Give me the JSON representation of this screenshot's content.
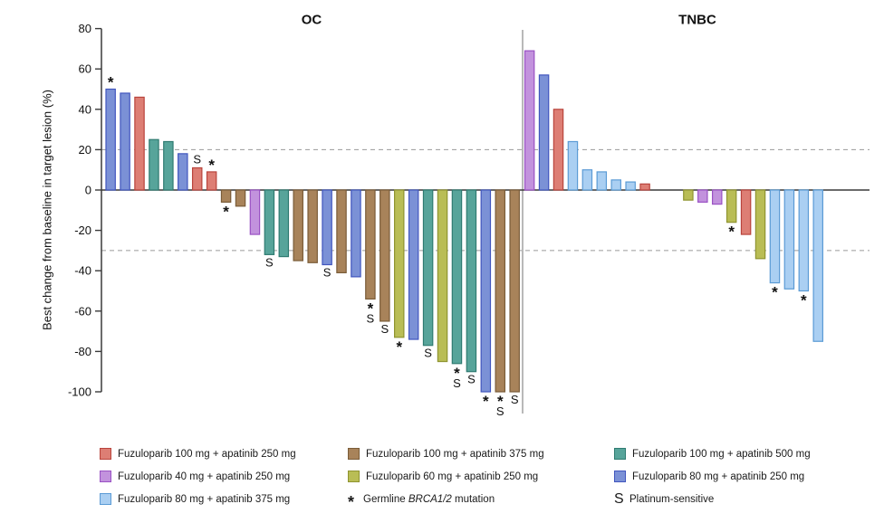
{
  "chart_data": {
    "type": "bar",
    "subtype": "waterfall",
    "ylabel": "Best change from baseline in target lesion (%)",
    "ylim": [
      -100,
      80
    ],
    "yticks": [
      80,
      60,
      40,
      20,
      0,
      -20,
      -40,
      -60,
      -80,
      -100
    ],
    "reference_lines": [
      20,
      -30
    ],
    "grid": "off",
    "legend_position": "bottom",
    "treatments": {
      "f100a250": {
        "label": "Fuzuloparib 100 mg + apatinib 250 mg",
        "fill": "#dd7e74",
        "stroke": "#b9443c"
      },
      "f100a375": {
        "label": "Fuzuloparib 100 mg + apatinib 375 mg",
        "fill": "#a8835a",
        "stroke": "#7a5c38"
      },
      "f100a500": {
        "label": "Fuzuloparib 100 mg + apatinib 500 mg",
        "fill": "#57a49a",
        "stroke": "#2f7b71"
      },
      "f40a250": {
        "label": "Fuzuloparib 40 mg + apatinib 250 mg",
        "fill": "#c292dd",
        "stroke": "#9a52c4"
      },
      "f60a250": {
        "label": "Fuzuloparib 60 mg + apatinib 250 mg",
        "fill": "#b9bd55",
        "stroke": "#8f9430"
      },
      "f80a250": {
        "label": "Fuzuloparib 80 mg + apatinib 250 mg",
        "fill": "#7b91d6",
        "stroke": "#4156be"
      },
      "f80a375": {
        "label": "Fuzuloparib 80 mg + apatinib 375 mg",
        "fill": "#aacff2",
        "stroke": "#5b9bd5"
      }
    },
    "markers": {
      "brca": {
        "symbol": "*",
        "label_parts": [
          "Germline ",
          "BRCA1/2",
          " mutation"
        ]
      },
      "platinum": {
        "symbol": "S",
        "label": "Platinum-sensitive"
      }
    },
    "legend_columns": [
      [
        "f100a250",
        "f40a250",
        "f80a375"
      ],
      [
        "f100a375",
        "f60a250",
        "brca"
      ],
      [
        "f100a500",
        "f80a250",
        "platinum"
      ]
    ],
    "panels": [
      {
        "title": "OC",
        "bars": [
          {
            "slot": 0,
            "value": 50,
            "treatment": "f80a250",
            "markers": "*"
          },
          {
            "slot": 1,
            "value": 48,
            "treatment": "f80a250",
            "markers": ""
          },
          {
            "slot": 2,
            "value": 46,
            "treatment": "f100a250",
            "markers": ""
          },
          {
            "slot": 3,
            "value": 25,
            "treatment": "f100a500",
            "markers": ""
          },
          {
            "slot": 4,
            "value": 24,
            "treatment": "f100a500",
            "markers": ""
          },
          {
            "slot": 5,
            "value": 18,
            "treatment": "f80a250",
            "markers": ""
          },
          {
            "slot": 6,
            "value": 11,
            "treatment": "f100a250",
            "markers": "S"
          },
          {
            "slot": 7,
            "value": 9,
            "treatment": "f100a250",
            "markers": "*"
          },
          {
            "slot": 8,
            "value": -6,
            "treatment": "f100a375",
            "markers": "*"
          },
          {
            "slot": 9,
            "value": -8,
            "treatment": "f100a375",
            "markers": ""
          },
          {
            "slot": 10,
            "value": -22,
            "treatment": "f40a250",
            "markers": ""
          },
          {
            "slot": 11,
            "value": -32,
            "treatment": "f100a500",
            "markers": "S"
          },
          {
            "slot": 12,
            "value": -33,
            "treatment": "f100a500",
            "markers": ""
          },
          {
            "slot": 13,
            "value": -35,
            "treatment": "f100a375",
            "markers": ""
          },
          {
            "slot": 14,
            "value": -36,
            "treatment": "f100a375",
            "markers": ""
          },
          {
            "slot": 15,
            "value": -37,
            "treatment": "f80a250",
            "markers": "S"
          },
          {
            "slot": 16,
            "value": -41,
            "treatment": "f100a375",
            "markers": ""
          },
          {
            "slot": 17,
            "value": -43,
            "treatment": "f80a250",
            "markers": ""
          },
          {
            "slot": 18,
            "value": -54,
            "treatment": "f100a375",
            "markers": "*S"
          },
          {
            "slot": 19,
            "value": -65,
            "treatment": "f100a375",
            "markers": "S"
          },
          {
            "slot": 20,
            "value": -73,
            "treatment": "f60a250",
            "markers": "*"
          },
          {
            "slot": 21,
            "value": -74,
            "treatment": "f80a250",
            "markers": ""
          },
          {
            "slot": 22,
            "value": -77,
            "treatment": "f100a500",
            "markers": "S"
          },
          {
            "slot": 23,
            "value": -85,
            "treatment": "f60a250",
            "markers": ""
          },
          {
            "slot": 24,
            "value": -86,
            "treatment": "f100a500",
            "markers": "*S"
          },
          {
            "slot": 25,
            "value": -90,
            "treatment": "f100a500",
            "markers": "S"
          },
          {
            "slot": 26,
            "value": -100,
            "treatment": "f80a250",
            "markers": "*"
          },
          {
            "slot": 27,
            "value": -100,
            "treatment": "f100a375",
            "markers": "*S"
          },
          {
            "slot": 28,
            "value": -100,
            "treatment": "f100a375",
            "markers": "S"
          }
        ]
      },
      {
        "title": "TNBC",
        "bars": [
          {
            "slot": 0,
            "value": 69,
            "treatment": "f40a250",
            "markers": ""
          },
          {
            "slot": 1,
            "value": 57,
            "treatment": "f80a250",
            "markers": ""
          },
          {
            "slot": 2,
            "value": 40,
            "treatment": "f100a250",
            "markers": ""
          },
          {
            "slot": 3,
            "value": 24,
            "treatment": "f80a375",
            "markers": ""
          },
          {
            "slot": 4,
            "value": 10,
            "treatment": "f80a375",
            "markers": ""
          },
          {
            "slot": 5,
            "value": 9,
            "treatment": "f80a375",
            "markers": ""
          },
          {
            "slot": 6,
            "value": 5,
            "treatment": "f80a375",
            "markers": ""
          },
          {
            "slot": 7,
            "value": 4,
            "treatment": "f80a375",
            "markers": ""
          },
          {
            "slot": 8,
            "value": 3,
            "treatment": "f100a250",
            "markers": ""
          },
          {
            "slot": 11,
            "value": -5,
            "treatment": "f60a250",
            "markers": ""
          },
          {
            "slot": 12,
            "value": -6,
            "treatment": "f40a250",
            "markers": ""
          },
          {
            "slot": 13,
            "value": -7,
            "treatment": "f40a250",
            "markers": ""
          },
          {
            "slot": 14,
            "value": -16,
            "treatment": "f60a250",
            "markers": "*"
          },
          {
            "slot": 15,
            "value": -22,
            "treatment": "f100a250",
            "markers": ""
          },
          {
            "slot": 16,
            "value": -34,
            "treatment": "f60a250",
            "markers": ""
          },
          {
            "slot": 17,
            "value": -46,
            "treatment": "f80a375",
            "markers": "*"
          },
          {
            "slot": 18,
            "value": -49,
            "treatment": "f80a375",
            "markers": ""
          },
          {
            "slot": 19,
            "value": -50,
            "treatment": "f80a375",
            "markers": "*"
          },
          {
            "slot": 20,
            "value": -75,
            "treatment": "f80a375",
            "markers": ""
          }
        ]
      }
    ]
  }
}
